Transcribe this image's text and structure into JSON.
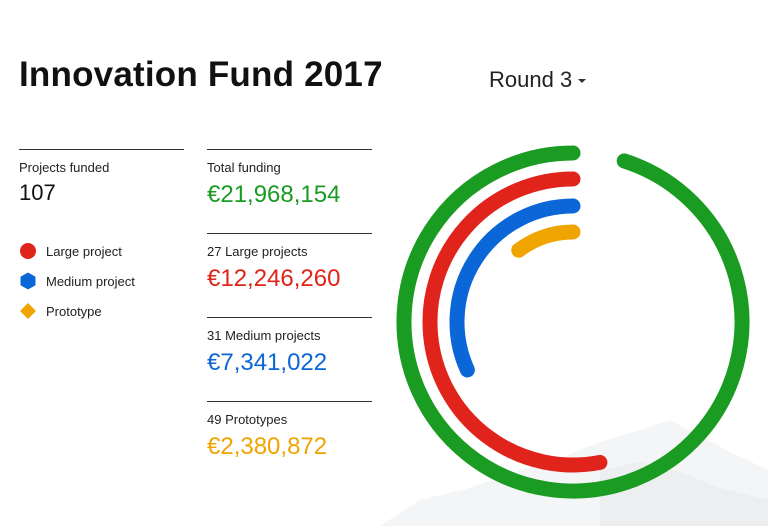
{
  "header": {
    "title": "Innovation Fund 2017",
    "round_select": "Round 3"
  },
  "summary": {
    "projects_funded_label": "Projects funded",
    "projects_funded_value": "107"
  },
  "legend": [
    {
      "label": "Large project",
      "shape": "circle",
      "color": "#e0231b"
    },
    {
      "label": "Medium project",
      "shape": "hexagon",
      "color": "#0b66d8"
    },
    {
      "label": "Prototype",
      "shape": "diamond",
      "color": "#f0a400"
    }
  ],
  "stats": [
    {
      "label": "Total funding",
      "value": "€21,968,154",
      "color": "green"
    },
    {
      "label": "27 Large projects",
      "value": "€12,246,260",
      "color": "red"
    },
    {
      "label": "31 Medium projects",
      "value": "€7,341,022",
      "color": "blue"
    },
    {
      "label": "49 Prototypes",
      "value": "€2,380,872",
      "color": "gold"
    }
  ],
  "chart_data": {
    "type": "radial-bar",
    "series": [
      {
        "name": "Total funding",
        "value": 21968154,
        "color": "#1a9b22"
      },
      {
        "name": "Large project",
        "value": 12246260,
        "color": "#e0231b"
      },
      {
        "name": "Medium project",
        "value": 7341022,
        "color": "#0b66d8"
      },
      {
        "name": "Prototype",
        "value": 2380872,
        "color": "#f0a400"
      }
    ]
  }
}
